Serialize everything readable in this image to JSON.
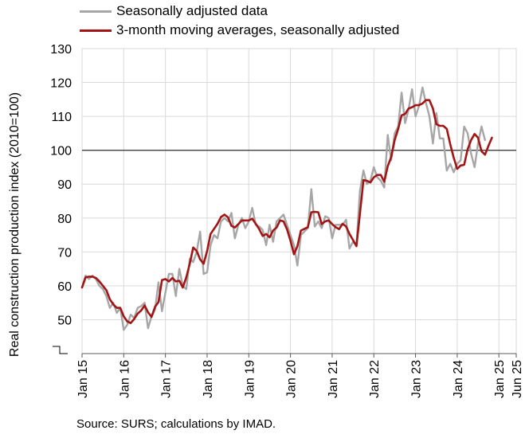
{
  "chart_data": {
    "type": "line",
    "ylabel": "Real construction production index (2010=100)",
    "xlabel": "",
    "ylim": [
      40,
      130
    ],
    "yticks": [
      50,
      60,
      70,
      80,
      90,
      100,
      110,
      120,
      130
    ],
    "y_axis_break": true,
    "reference_line": 100,
    "grid": true,
    "legend_position": "top-left",
    "x_start": "2015-01",
    "x_end": "2025-06",
    "xticks": [
      {
        "label": "Jan 15",
        "month": 0
      },
      {
        "label": "Jan 16",
        "month": 12
      },
      {
        "label": "Jan 17",
        "month": 24
      },
      {
        "label": "Jan 18",
        "month": 36
      },
      {
        "label": "Jan 19",
        "month": 48
      },
      {
        "label": "Jan 20",
        "month": 60
      },
      {
        "label": "Jan 21",
        "month": 72
      },
      {
        "label": "Jan 22",
        "month": 84
      },
      {
        "label": "Jan 23",
        "month": 96
      },
      {
        "label": "Jan 24",
        "month": 108
      },
      {
        "label": "Jan 25",
        "month": 120
      },
      {
        "label": "Jun 25",
        "month": 125
      }
    ],
    "series": [
      {
        "name": "Seasonally adjusted data",
        "color": "#a6a6a6",
        "values": [
          59.5,
          63,
          62,
          63,
          62,
          60,
          59,
          57,
          53.5,
          55,
          52,
          53.5,
          47,
          48.5,
          51.5,
          50.5,
          53.5,
          54,
          55,
          47.5,
          51,
          53,
          61,
          52.5,
          58,
          63.5,
          63.5,
          57,
          65,
          60,
          59,
          68,
          67,
          70,
          76,
          63.5,
          64,
          72,
          75,
          74,
          79,
          80,
          79,
          81.5,
          74,
          78,
          80,
          77,
          79,
          83,
          78,
          77.5,
          76.5,
          72,
          78,
          73,
          79,
          80,
          81,
          78,
          75,
          72,
          66,
          75,
          76,
          77,
          88.5,
          77.5,
          79,
          77,
          80.5,
          80,
          74,
          78,
          78,
          78,
          79.5,
          71,
          73,
          72,
          88,
          94,
          90,
          91,
          95,
          92,
          91,
          89,
          104.5,
          97,
          105,
          107,
          117,
          108,
          112,
          118,
          110,
          113,
          118.5,
          114,
          110,
          102,
          111,
          103.5,
          103.5,
          94,
          96,
          93.5,
          96,
          97,
          107,
          105,
          99,
          95,
          102,
          107,
          103
        ]
      },
      {
        "name": "3-month moving averages, seasonally adjusted",
        "color": "#a31515",
        "values": [
          59.5,
          62.5,
          62.7,
          62.7,
          62.3,
          61.3,
          60,
          58.7,
          56,
          54.5,
          53.5,
          53.5,
          51,
          49.5,
          49,
          50.2,
          51.8,
          52.7,
          54.2,
          52.2,
          50.8,
          53.8,
          55.2,
          61.7,
          62,
          61.3,
          62.3,
          61.3,
          61.5,
          59.5,
          62.5,
          66.5,
          71.3,
          70.3,
          67.8,
          66.5,
          70.3,
          75.3,
          76.8,
          78.3,
          80.3,
          81,
          80.2,
          77.7,
          77.2,
          78.2,
          79.3,
          79.3,
          79.3,
          79.8,
          78.3,
          76.7,
          74.7,
          75.3,
          74.3,
          76.3,
          77.2,
          79.3,
          79,
          76.7,
          73.3,
          69.3,
          71.7,
          76.3,
          76.8,
          77.3,
          81.7,
          81.8,
          81.7,
          78.2,
          79,
          79.3,
          78.2,
          77.3,
          76.7,
          78.3,
          77.5,
          75.3,
          73.5,
          71.7,
          81.3,
          91.2,
          91,
          90.5,
          92,
          92.7,
          92.7,
          90.7,
          95.3,
          98,
          103,
          106.3,
          110.3,
          110.7,
          112.3,
          112.7,
          113.3,
          113.3,
          113.8,
          114.8,
          114.8,
          112.3,
          107.7,
          107.2,
          107.2,
          106.3,
          101.7,
          97.8,
          94.5,
          95.5,
          95.7,
          100.3,
          103,
          104.8,
          103.7,
          99.7,
          98.7,
          101.3,
          103.7
        ]
      }
    ]
  },
  "source_text": "Source: SURS; calculations by IMAD."
}
